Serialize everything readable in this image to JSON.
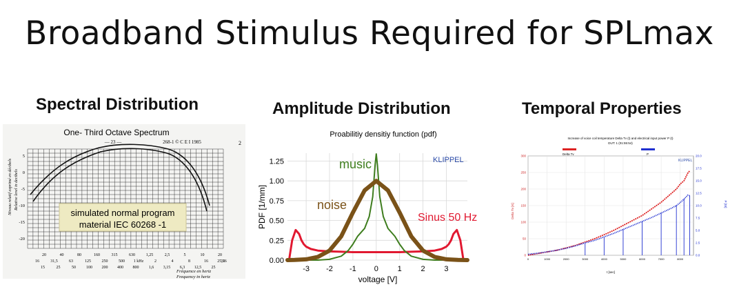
{
  "slide": {
    "title": "Broadband Stimulus Required for SPLmax"
  },
  "panels": {
    "spectral": {
      "heading": "Spectral Distribution",
      "chart_title": "One- Third Octave Spectrum",
      "page_mark": "— 23 —",
      "doc_ref": "268-1 © C E I 1985",
      "margin_mark": "2",
      "ylabel_fr": "Niveau relatif exprimé en décibels",
      "ylabel_en": "Relative level in decibels",
      "yticks": [
        "5",
        "0",
        "-5",
        "-10",
        "-15",
        "-20"
      ],
      "xticks_upper": [
        "20",
        "40",
        "80",
        "160",
        "315",
        "630",
        "1,25",
        "2,5",
        "5",
        "10",
        "20"
      ],
      "xticks_middle": [
        "16",
        "31,5",
        "63",
        "125",
        "250",
        "500",
        "1 kHz",
        "2",
        "4",
        "8",
        "16",
        "31"
      ],
      "xticks_lower": [
        "15",
        "25",
        "50",
        "100",
        "200",
        "400",
        "800",
        "1,6",
        "3,15",
        "6,3",
        "12,5",
        "25"
      ],
      "xticks_bottom": [
        "25,16"
      ],
      "xlabel_fr": "Fréquence en hertz",
      "xlabel_en": "Frequency in hertz",
      "note_line1": "simulated normal program",
      "note_line2": "material IEC 60268 -1"
    },
    "amplitude": {
      "heading": "Amplitude Distribution",
      "chart_data": {
        "type": "line",
        "title": "Proabilitiy densitiy function (pdf)",
        "xlabel": "voltage [V]",
        "ylabel": "PDF [1/mm]",
        "xlim": [
          -3.8,
          3.9
        ],
        "ylim": [
          0,
          1.35
        ],
        "xticks": [
          -3,
          -2,
          -1,
          0,
          1,
          2,
          3
        ],
        "yticks": [
          0,
          0.25,
          0.5,
          0.75,
          1.0,
          1.25
        ],
        "grid": true,
        "watermark": "KLIPPEL",
        "series": [
          {
            "name": "noise",
            "color": "#7a5218",
            "x": [
              -3.8,
              -3.5,
              -3.0,
              -2.5,
              -2.0,
              -1.5,
              -1.0,
              -0.5,
              0,
              0.5,
              1.0,
              1.5,
              2.0,
              2.5,
              3.0,
              3.5,
              3.9
            ],
            "y": [
              0.0,
              0.002,
              0.01,
              0.04,
              0.12,
              0.3,
              0.6,
              0.88,
              1.0,
              0.88,
              0.6,
              0.3,
              0.12,
              0.04,
              0.01,
              0.002,
              0.0
            ]
          },
          {
            "name": "music",
            "color": "#3e7d1e",
            "x": [
              -3.8,
              -2.5,
              -2.0,
              -1.5,
              -1.2,
              -1.0,
              -0.8,
              -0.5,
              -0.3,
              -0.15,
              -0.05,
              0,
              0.05,
              0.15,
              0.3,
              0.5,
              0.8,
              1.0,
              1.2,
              1.5,
              2.0,
              2.5,
              3.9
            ],
            "y": [
              0.0,
              0.0,
              0.01,
              0.05,
              0.12,
              0.2,
              0.3,
              0.4,
              0.55,
              0.8,
              1.2,
              1.34,
              1.2,
              0.8,
              0.55,
              0.4,
              0.3,
              0.2,
              0.12,
              0.05,
              0.01,
              0.0,
              0.0
            ]
          },
          {
            "name": "Sinus 50 Hz",
            "color": "#e11830",
            "x": [
              -3.72,
              -3.6,
              -3.45,
              -3.3,
              -3.2,
              -3.1,
              -3.0,
              -2.8,
              -2.5,
              -2.0,
              -1.5,
              -1.0,
              0,
              1.0,
              1.5,
              2.0,
              2.5,
              2.8,
              3.0,
              3.1,
              3.2,
              3.3,
              3.45,
              3.6,
              3.72
            ],
            "y": [
              0.02,
              0.25,
              0.38,
              0.33,
              0.25,
              0.2,
              0.17,
              0.14,
              0.12,
              0.11,
              0.105,
              0.1,
              0.1,
              0.1,
              0.105,
              0.11,
              0.12,
              0.14,
              0.17,
              0.2,
              0.25,
              0.33,
              0.38,
              0.25,
              0.02
            ]
          }
        ]
      }
    },
    "temporal": {
      "heading": "Temporal Properties",
      "chart_data": {
        "type": "line",
        "title": "Increase of voice coil temperature Delta Tv (t) and electrical input power P (t)",
        "subtitle": "DUT: 1 (01:55:54)",
        "xlabel": "t [sec]",
        "ylabel": "Delta Tv [K]",
        "y2label": "P [W]",
        "ylim": [
          0,
          300
        ],
        "y2lim": [
          0,
          20
        ],
        "xlim": [
          0,
          8700
        ],
        "yticks": [
          0,
          50,
          100,
          150,
          200,
          250,
          300
        ],
        "y2ticks": [
          0,
          2.5,
          5,
          7.5,
          10,
          12.5,
          15,
          17.5,
          20
        ],
        "xticks": [
          0,
          1000,
          2000,
          3000,
          4000,
          5000,
          6000,
          7000,
          8000
        ],
        "legend": [
          "Delta Tv",
          "P"
        ],
        "watermark": "KLIPPEL",
        "series": [
          {
            "name": "Delta Tv",
            "color": "#dd2222",
            "axis": "left",
            "x": [
              0,
              500,
              1000,
              1500,
              2000,
              2500,
              3000,
              3500,
              4000,
              4500,
              5000,
              5500,
              6000,
              6500,
              7000,
              7500,
              7800,
              8000,
              8200,
              8400,
              8500
            ],
            "y": [
              0,
              5,
              10,
              15,
              22,
              30,
              40,
              50,
              62,
              75,
              90,
              105,
              120,
              140,
              160,
              185,
              200,
              215,
              225,
              248,
              255
            ]
          },
          {
            "name": "P",
            "color": "#1f2fd0",
            "axis": "right",
            "x": [
              0,
              500,
              1000,
              1500,
              2000,
              2500,
              3000,
              3500,
              4000,
              4500,
              5000,
              5500,
              6000,
              6500,
              7000,
              7500,
              7800,
              8000,
              8200,
              8400,
              8500
            ],
            "y": [
              0.2,
              0.4,
              0.7,
              1.0,
              1.4,
              1.9,
              2.5,
              3.0,
              3.7,
              4.4,
              5.2,
              6.0,
              6.8,
              7.6,
              8.5,
              9.4,
              10.0,
              10.6,
              11.3,
              12.1,
              12.0
            ]
          }
        ]
      }
    }
  }
}
